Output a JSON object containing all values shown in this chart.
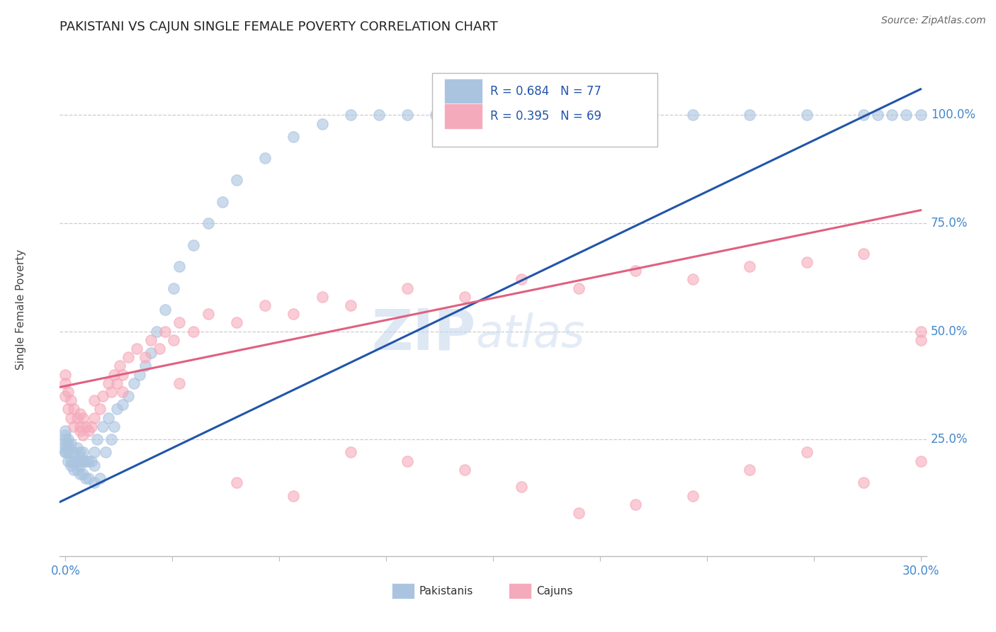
{
  "title": "PAKISTANI VS CAJUN SINGLE FEMALE POVERTY CORRELATION CHART",
  "source": "Source: ZipAtlas.com",
  "ylabel": "Single Female Poverty",
  "ytick_vals": [
    1.0,
    0.75,
    0.5,
    0.25
  ],
  "ytick_labels": [
    "100.0%",
    "75.0%",
    "50.0%",
    "25.0%"
  ],
  "xlim": [
    0.0,
    0.3
  ],
  "ylim": [
    0.0,
    1.1
  ],
  "r_pakistani": 0.684,
  "n_pakistani": 77,
  "r_cajun": 0.395,
  "n_cajun": 69,
  "pakistani_color": "#aac4e0",
  "cajun_color": "#f5aabb",
  "pakistani_line_color": "#2255aa",
  "cajun_line_color": "#e06080",
  "watermark_zip": "ZIP",
  "watermark_atlas": "atlas",
  "pak_x": [
    0.0,
    0.0,
    0.0,
    0.0,
    0.0,
    0.0,
    0.0,
    0.001,
    0.001,
    0.001,
    0.001,
    0.001,
    0.002,
    0.002,
    0.002,
    0.002,
    0.003,
    0.003,
    0.003,
    0.004,
    0.004,
    0.004,
    0.005,
    0.005,
    0.005,
    0.005,
    0.006,
    0.006,
    0.006,
    0.007,
    0.007,
    0.008,
    0.008,
    0.009,
    0.01,
    0.01,
    0.01,
    0.011,
    0.012,
    0.013,
    0.014,
    0.015,
    0.016,
    0.017,
    0.018,
    0.02,
    0.022,
    0.024,
    0.026,
    0.028,
    0.03,
    0.032,
    0.035,
    0.038,
    0.04,
    0.045,
    0.05,
    0.055,
    0.06,
    0.07,
    0.08,
    0.09,
    0.1,
    0.11,
    0.12,
    0.13,
    0.15,
    0.18,
    0.2,
    0.22,
    0.24,
    0.26,
    0.28,
    0.285,
    0.29,
    0.295,
    0.3
  ],
  "pak_y": [
    0.22,
    0.22,
    0.23,
    0.24,
    0.25,
    0.26,
    0.27,
    0.2,
    0.22,
    0.23,
    0.24,
    0.25,
    0.19,
    0.2,
    0.22,
    0.24,
    0.18,
    0.2,
    0.22,
    0.18,
    0.2,
    0.23,
    0.17,
    0.19,
    0.21,
    0.22,
    0.17,
    0.2,
    0.22,
    0.16,
    0.2,
    0.16,
    0.2,
    0.2,
    0.15,
    0.19,
    0.22,
    0.25,
    0.16,
    0.28,
    0.22,
    0.3,
    0.25,
    0.28,
    0.32,
    0.33,
    0.35,
    0.38,
    0.4,
    0.42,
    0.45,
    0.5,
    0.55,
    0.6,
    0.65,
    0.7,
    0.75,
    0.8,
    0.85,
    0.9,
    0.95,
    0.98,
    1.0,
    1.0,
    1.0,
    1.0,
    1.0,
    1.0,
    1.0,
    1.0,
    1.0,
    1.0,
    1.0,
    1.0,
    1.0,
    1.0,
    1.0
  ],
  "caj_x": [
    0.0,
    0.0,
    0.0,
    0.001,
    0.001,
    0.002,
    0.002,
    0.003,
    0.003,
    0.004,
    0.005,
    0.005,
    0.006,
    0.006,
    0.007,
    0.008,
    0.009,
    0.01,
    0.012,
    0.013,
    0.015,
    0.016,
    0.017,
    0.018,
    0.019,
    0.02,
    0.022,
    0.025,
    0.028,
    0.03,
    0.033,
    0.035,
    0.038,
    0.04,
    0.045,
    0.05,
    0.06,
    0.07,
    0.08,
    0.09,
    0.1,
    0.12,
    0.14,
    0.16,
    0.18,
    0.2,
    0.22,
    0.24,
    0.26,
    0.28,
    0.3,
    0.3,
    0.3,
    0.28,
    0.26,
    0.24,
    0.22,
    0.2,
    0.18,
    0.16,
    0.14,
    0.12,
    0.1,
    0.08,
    0.06,
    0.04,
    0.02,
    0.01,
    0.005
  ],
  "caj_y": [
    0.35,
    0.38,
    0.4,
    0.32,
    0.36,
    0.3,
    0.34,
    0.28,
    0.32,
    0.3,
    0.27,
    0.31,
    0.26,
    0.3,
    0.28,
    0.27,
    0.28,
    0.3,
    0.32,
    0.35,
    0.38,
    0.36,
    0.4,
    0.38,
    0.42,
    0.4,
    0.44,
    0.46,
    0.44,
    0.48,
    0.46,
    0.5,
    0.48,
    0.52,
    0.5,
    0.54,
    0.52,
    0.56,
    0.54,
    0.58,
    0.56,
    0.6,
    0.58,
    0.62,
    0.6,
    0.64,
    0.62,
    0.65,
    0.66,
    0.68,
    0.5,
    0.2,
    0.48,
    0.15,
    0.22,
    0.18,
    0.12,
    0.1,
    0.08,
    0.14,
    0.18,
    0.2,
    0.22,
    0.12,
    0.15,
    0.38,
    0.36,
    0.34,
    0.28
  ],
  "pak_line_x": [
    -0.002,
    0.3
  ],
  "pak_line_y": [
    0.1,
    1.05
  ],
  "caj_line_x": [
    -0.002,
    0.3
  ],
  "caj_line_y": [
    0.38,
    0.78
  ]
}
